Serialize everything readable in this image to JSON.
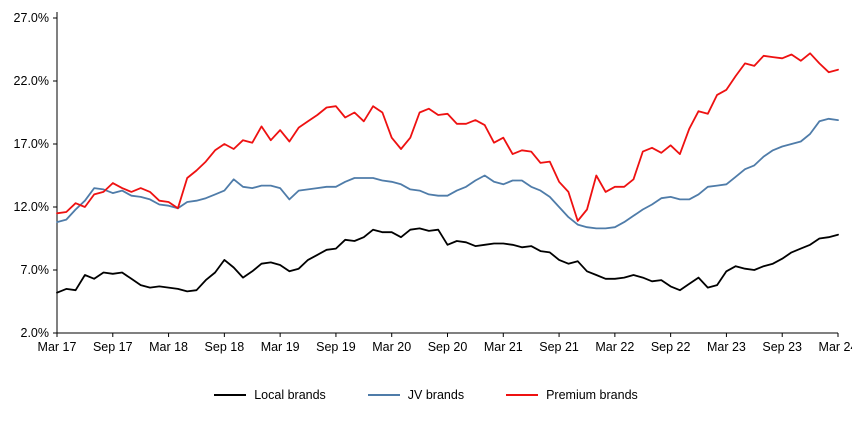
{
  "chart_data": {
    "type": "line",
    "title": "",
    "xlabel": "",
    "ylabel": "",
    "ylim": [
      2,
      27
    ],
    "y_ticks": [
      2,
      7,
      12,
      17,
      22,
      27
    ],
    "y_tick_format": "one_decimal_percent",
    "grid": false,
    "legend_position": "bottom",
    "x_tick_step": 6,
    "x_tick_labels": [
      "Mar 17",
      "Sep 17",
      "Mar 18",
      "Sep 18",
      "Mar 19",
      "Sep 19",
      "Mar 20",
      "Sep 20",
      "Mar 21",
      "Sep 21",
      "Mar 22",
      "Sep 22",
      "Mar 23",
      "Sep 23",
      "Mar 24"
    ],
    "series": [
      {
        "name": "Local brands",
        "color": "#000000",
        "values": [
          5.2,
          5.5,
          5.4,
          6.6,
          6.3,
          6.8,
          6.7,
          6.8,
          6.3,
          5.8,
          5.6,
          5.7,
          5.6,
          5.5,
          5.3,
          5.4,
          6.2,
          6.8,
          7.8,
          7.2,
          6.4,
          6.9,
          7.5,
          7.6,
          7.4,
          6.9,
          7.1,
          7.8,
          8.2,
          8.6,
          8.7,
          9.4,
          9.3,
          9.6,
          10.2,
          10.0,
          10.0,
          9.6,
          10.2,
          10.3,
          10.1,
          10.2,
          9.0,
          9.3,
          9.2,
          8.9,
          9.0,
          9.1,
          9.1,
          9.0,
          8.8,
          8.9,
          8.5,
          8.4,
          7.8,
          7.5,
          7.7,
          6.9,
          6.6,
          6.3,
          6.3,
          6.4,
          6.6,
          6.4,
          6.1,
          6.2,
          5.7,
          5.4,
          5.9,
          6.4,
          5.6,
          5.8,
          6.9,
          7.3,
          7.1,
          7.0,
          7.3,
          7.5,
          7.9,
          8.4,
          8.7,
          9.0,
          9.5,
          9.6,
          9.8
        ]
      },
      {
        "name": "JV brands",
        "color": "#4f7ca9",
        "values": [
          10.8,
          11.0,
          11.8,
          12.5,
          13.5,
          13.4,
          13.1,
          13.3,
          12.9,
          12.8,
          12.6,
          12.2,
          12.1,
          11.9,
          12.4,
          12.5,
          12.7,
          13.0,
          13.3,
          14.2,
          13.6,
          13.5,
          13.7,
          13.7,
          13.5,
          12.6,
          13.3,
          13.4,
          13.5,
          13.6,
          13.6,
          14.0,
          14.3,
          14.3,
          14.3,
          14.1,
          14.0,
          13.8,
          13.4,
          13.3,
          13.0,
          12.9,
          12.9,
          13.3,
          13.6,
          14.1,
          14.5,
          14.0,
          13.8,
          14.1,
          14.1,
          13.6,
          13.3,
          12.8,
          12.0,
          11.2,
          10.6,
          10.4,
          10.3,
          10.3,
          10.4,
          10.8,
          11.3,
          11.8,
          12.2,
          12.7,
          12.8,
          12.6,
          12.6,
          13.0,
          13.6,
          13.7,
          13.8,
          14.4,
          15.0,
          15.3,
          16.0,
          16.5,
          16.8,
          17.0,
          17.2,
          17.8,
          18.8,
          19.0,
          18.9
        ]
      },
      {
        "name": "Premium brands",
        "color": "#ee1111",
        "values": [
          11.5,
          11.6,
          12.3,
          12.0,
          13.0,
          13.2,
          13.9,
          13.5,
          13.2,
          13.5,
          13.2,
          12.5,
          12.4,
          11.9,
          14.3,
          14.9,
          15.6,
          16.5,
          17.0,
          16.6,
          17.3,
          17.1,
          18.4,
          17.3,
          18.1,
          17.2,
          18.3,
          18.8,
          19.3,
          19.9,
          20.0,
          19.1,
          19.5,
          18.8,
          20.0,
          19.5,
          17.5,
          16.6,
          17.5,
          19.5,
          19.8,
          19.3,
          19.4,
          18.6,
          18.6,
          18.9,
          18.5,
          17.1,
          17.5,
          16.2,
          16.5,
          16.4,
          15.5,
          15.6,
          14.0,
          13.2,
          10.9,
          11.8,
          14.5,
          13.2,
          13.6,
          13.6,
          14.2,
          16.4,
          16.7,
          16.3,
          16.9,
          16.2,
          18.2,
          19.6,
          19.4,
          20.9,
          21.3,
          22.4,
          23.4,
          23.2,
          24.0,
          23.9,
          23.8,
          24.1,
          23.6,
          24.2,
          23.4,
          22.7,
          22.9
        ]
      }
    ]
  }
}
